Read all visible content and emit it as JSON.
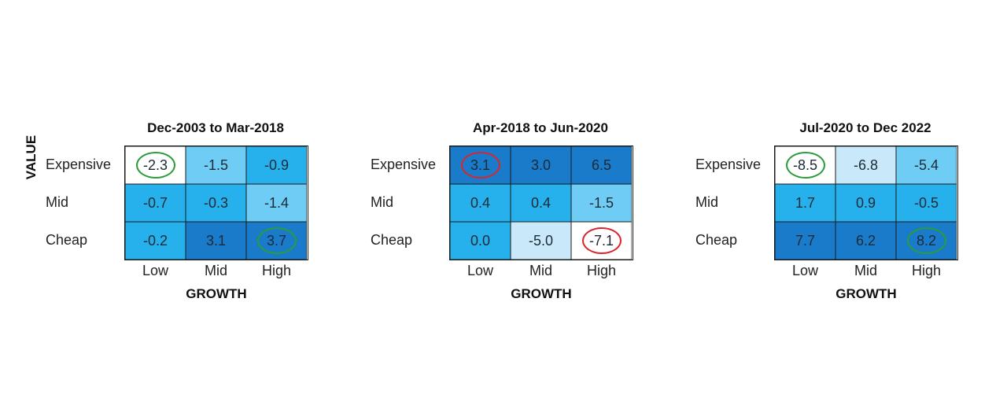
{
  "colors": {
    "white": "#ffffff",
    "pale": "#c9e9fb",
    "light": "#6fcdf5",
    "mid": "#26b1ec",
    "dark": "#1a7bcb",
    "ring_green": "#2a9d3a",
    "ring_red": "#d9262e"
  },
  "ylabel": "VALUE",
  "chart_data": [
    {
      "type": "heatmap",
      "title": "Dec-2003 to Mar-2018",
      "xlabel": "GROWTH",
      "ylabel": "VALUE",
      "rows": [
        "Expensive",
        "Mid",
        "Cheap"
      ],
      "columns": [
        "Low",
        "Mid",
        "High"
      ],
      "values": [
        [
          "-2.3",
          "-1.5",
          "-0.9"
        ],
        [
          "-0.7",
          "-0.3",
          "-1.4"
        ],
        [
          "-0.2",
          "3.1",
          "3.7"
        ]
      ],
      "cell_colors": [
        [
          "white",
          "light",
          "mid"
        ],
        [
          "mid",
          "mid",
          "light"
        ],
        [
          "mid",
          "dark",
          "dark"
        ]
      ],
      "highlights": [
        [
          "green",
          "",
          ""
        ],
        [
          "",
          "",
          ""
        ],
        [
          "",
          "",
          "green"
        ]
      ]
    },
    {
      "type": "heatmap",
      "title": "Apr-2018 to Jun-2020",
      "xlabel": "GROWTH",
      "rows": [
        "Expensive",
        "Mid",
        "Cheap"
      ],
      "columns": [
        "Low",
        "Mid",
        "High"
      ],
      "values": [
        [
          "3.1",
          "3.0",
          "6.5"
        ],
        [
          "0.4",
          "0.4",
          "-1.5"
        ],
        [
          "0.0",
          "-5.0",
          "-7.1"
        ]
      ],
      "cell_colors": [
        [
          "dark",
          "dark",
          "dark"
        ],
        [
          "mid",
          "mid",
          "light"
        ],
        [
          "mid",
          "pale",
          "white"
        ]
      ],
      "highlights": [
        [
          "red",
          "",
          ""
        ],
        [
          "",
          "",
          ""
        ],
        [
          "",
          "",
          "red"
        ]
      ]
    },
    {
      "type": "heatmap",
      "title": "Jul-2020 to Dec 2022",
      "xlabel": "GROWTH",
      "rows": [
        "Expensive",
        "Mid",
        "Cheap"
      ],
      "columns": [
        "Low",
        "Mid",
        "High"
      ],
      "values": [
        [
          "-8.5",
          "-6.8",
          "-5.4"
        ],
        [
          "1.7",
          "0.9",
          "-0.5"
        ],
        [
          "7.7",
          "6.2",
          "8.2"
        ]
      ],
      "cell_colors": [
        [
          "white",
          "pale",
          "light"
        ],
        [
          "mid",
          "mid",
          "mid"
        ],
        [
          "dark",
          "dark",
          "dark"
        ]
      ],
      "highlights": [
        [
          "green",
          "",
          ""
        ],
        [
          "",
          "",
          ""
        ],
        [
          "",
          "",
          "green"
        ]
      ]
    }
  ]
}
